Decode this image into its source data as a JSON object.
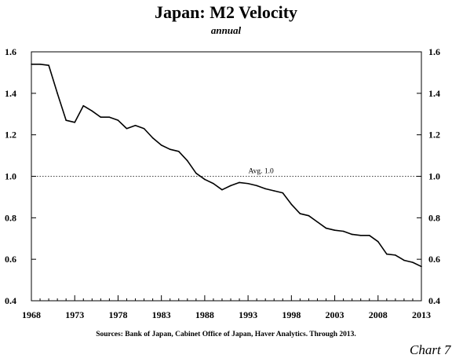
{
  "chart_data": {
    "type": "line",
    "title": "Japan: M2 Velocity",
    "subtitle": "annual",
    "source": "Sources: Bank of Japan, Cabinet Office of Japan, Haver Analytics. Through 2013.",
    "caption": "Chart 7",
    "xlim": [
      1968,
      2013
    ],
    "ylim": [
      0.4,
      1.6
    ],
    "x_ticks": [
      1968,
      1973,
      1978,
      1983,
      1988,
      1993,
      1998,
      2003,
      2008,
      2013
    ],
    "y_ticks": [
      0.4,
      0.6,
      0.8,
      1.0,
      1.2,
      1.4,
      1.6
    ],
    "y_tick_labels": [
      "0.4",
      "0.6",
      "0.8",
      "1.0",
      "1.2",
      "1.4",
      "1.6"
    ],
    "reference_line": {
      "value": 1.0,
      "label": "Avg. 1.0",
      "style": "dotted"
    },
    "series": [
      {
        "color": "#000000",
        "x": [
          1968,
          1969,
          1970,
          1971,
          1972,
          1973,
          1974,
          1975,
          1976,
          1977,
          1978,
          1979,
          1980,
          1981,
          1982,
          1983,
          1984,
          1985,
          1986,
          1987,
          1988,
          1989,
          1990,
          1991,
          1992,
          1993,
          1994,
          1995,
          1996,
          1997,
          1998,
          1999,
          2000,
          2001,
          2002,
          2003,
          2004,
          2005,
          2006,
          2007,
          2008,
          2009,
          2010,
          2011,
          2012,
          2013
        ],
        "values": [
          1.54,
          1.54,
          1.535,
          1.4,
          1.27,
          1.26,
          1.34,
          1.315,
          1.285,
          1.285,
          1.27,
          1.23,
          1.245,
          1.23,
          1.185,
          1.15,
          1.13,
          1.12,
          1.075,
          1.015,
          0.985,
          0.965,
          0.935,
          0.955,
          0.97,
          0.965,
          0.955,
          0.94,
          0.93,
          0.92,
          0.865,
          0.82,
          0.81,
          0.78,
          0.75,
          0.74,
          0.735,
          0.72,
          0.715,
          0.715,
          0.685,
          0.625,
          0.62,
          0.595,
          0.585,
          0.565
        ]
      }
    ]
  }
}
